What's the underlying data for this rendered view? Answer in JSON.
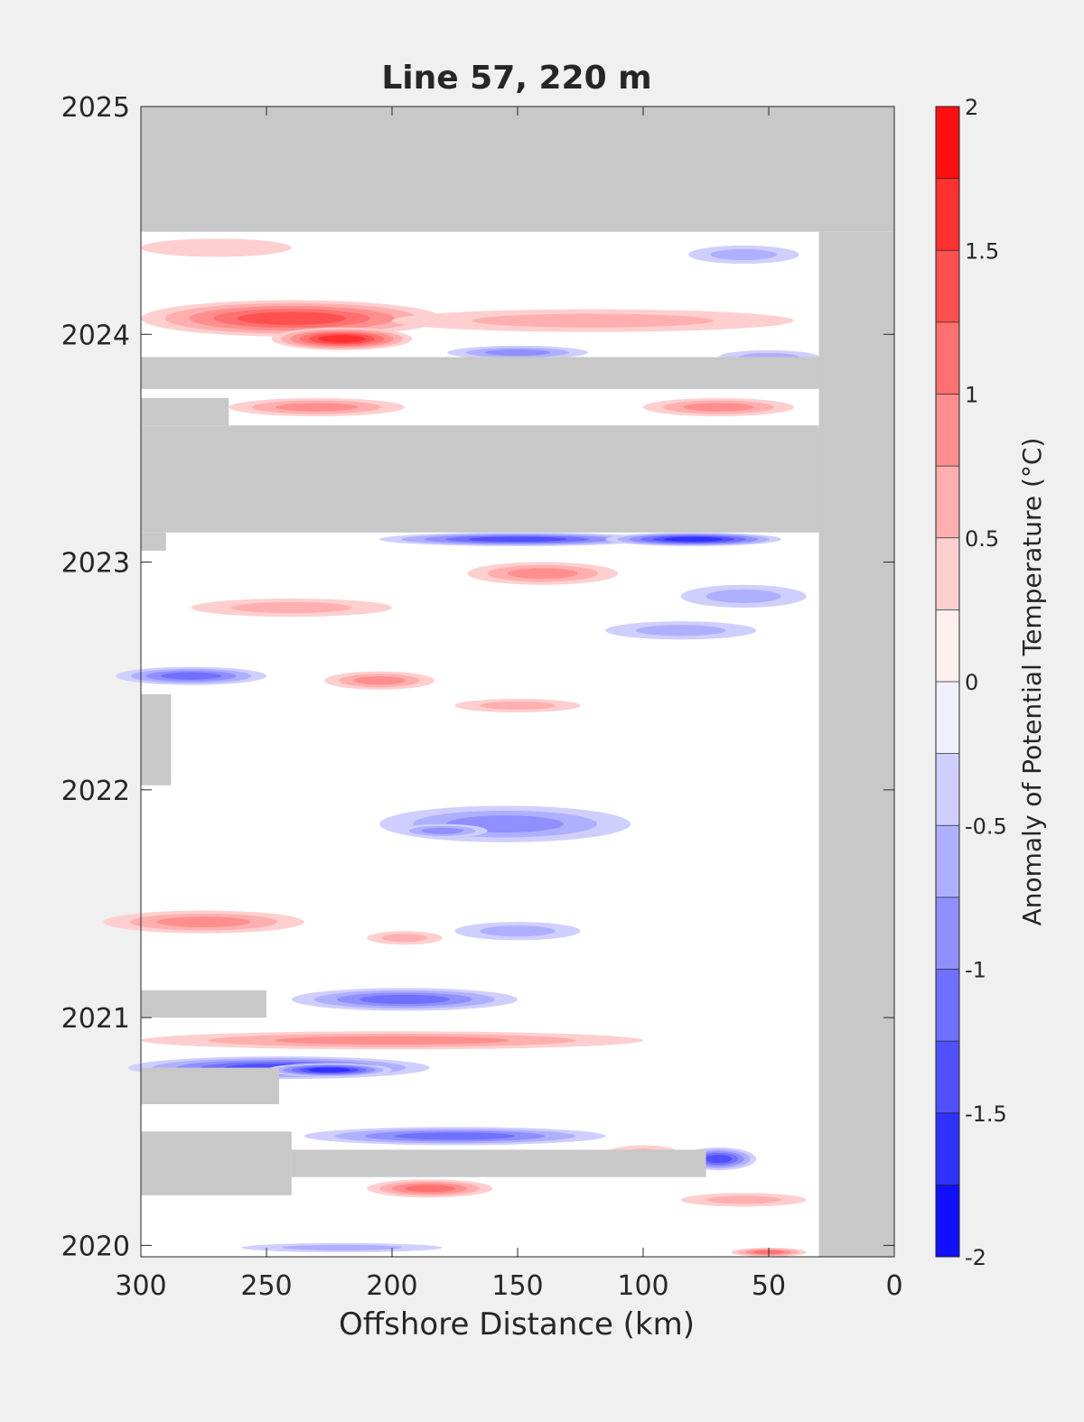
{
  "chart_data": {
    "type": "heatmap",
    "title": "Line 57, 220 m",
    "xlabel": "Offshore Distance (km)",
    "ylabel": "",
    "xlim": [
      300,
      0
    ],
    "x_reversed": true,
    "ylim": [
      2019.95,
      2025
    ],
    "xticks": [
      300,
      250,
      200,
      150,
      100,
      50,
      0
    ],
    "yticks": [
      2020,
      2021,
      2022,
      2023,
      2024,
      2025
    ],
    "colorbar": {
      "label": "Anomaly of Potential Temperature (°C)",
      "min": -2,
      "max": 2,
      "step": 0.25,
      "ticks": [
        -2,
        -1.5,
        -1,
        -0.5,
        0,
        0.5,
        1,
        1.5,
        2
      ],
      "low_color": "#0000ff",
      "mid_color": "#ffffff",
      "high_color": "#ff0000"
    },
    "nodata_color": "#c8c8c8",
    "background_color": "#ffffff",
    "nodata_regions": [
      {
        "x": [
          300,
          0
        ],
        "y": [
          2024.45,
          2025
        ]
      },
      {
        "x": [
          30,
          0
        ],
        "y": [
          2019.95,
          2024.45
        ]
      },
      {
        "x": [
          300,
          30
        ],
        "y": [
          2023.13,
          2023.6
        ]
      },
      {
        "x": [
          300,
          265
        ],
        "y": [
          2023.6,
          2023.72
        ]
      },
      {
        "x": [
          300,
          30
        ],
        "y": [
          2023.76,
          2023.9
        ]
      },
      {
        "x": [
          300,
          290
        ],
        "y": [
          2023.05,
          2023.13
        ]
      },
      {
        "x": [
          300,
          288
        ],
        "y": [
          2022.02,
          2022.42
        ]
      },
      {
        "x": [
          300,
          250
        ],
        "y": [
          2021.0,
          2021.12
        ]
      },
      {
        "x": [
          300,
          245
        ],
        "y": [
          2020.62,
          2020.78
        ]
      },
      {
        "x": [
          300,
          240
        ],
        "y": [
          2020.22,
          2020.5
        ]
      },
      {
        "x": [
          240,
          75
        ],
        "y": [
          2020.3,
          2020.42
        ]
      }
    ],
    "anomaly_features": [
      {
        "x": 240,
        "y": 2024.07,
        "value": 1.25,
        "sx": 60,
        "sy": 0.08
      },
      {
        "x": 220,
        "y": 2023.98,
        "value": 1.5,
        "sx": 28,
        "sy": 0.05
      },
      {
        "x": 120,
        "y": 2024.06,
        "value": 0.55,
        "sx": 80,
        "sy": 0.05
      },
      {
        "x": 270,
        "y": 2024.38,
        "value": 0.3,
        "sx": 30,
        "sy": 0.04
      },
      {
        "x": 60,
        "y": 2024.35,
        "value": -0.5,
        "sx": 22,
        "sy": 0.04
      },
      {
        "x": 150,
        "y": 2023.92,
        "value": -0.75,
        "sx": 28,
        "sy": 0.03
      },
      {
        "x": 50,
        "y": 2023.9,
        "value": -0.6,
        "sx": 20,
        "sy": 0.03
      },
      {
        "x": 230,
        "y": 2023.68,
        "value": 0.8,
        "sx": 35,
        "sy": 0.04
      },
      {
        "x": 70,
        "y": 2023.68,
        "value": 0.8,
        "sx": 30,
        "sy": 0.04
      },
      {
        "x": 150,
        "y": 2023.1,
        "value": -1.25,
        "sx": 55,
        "sy": 0.03
      },
      {
        "x": 80,
        "y": 2023.1,
        "value": -1.5,
        "sx": 35,
        "sy": 0.03
      },
      {
        "x": 140,
        "y": 2022.95,
        "value": 0.75,
        "sx": 30,
        "sy": 0.05
      },
      {
        "x": 240,
        "y": 2022.8,
        "value": 0.7,
        "sx": 40,
        "sy": 0.04
      },
      {
        "x": 60,
        "y": 2022.85,
        "value": -0.5,
        "sx": 25,
        "sy": 0.05
      },
      {
        "x": 85,
        "y": 2022.7,
        "value": -0.5,
        "sx": 30,
        "sy": 0.04
      },
      {
        "x": 280,
        "y": 2022.5,
        "value": -1.0,
        "sx": 30,
        "sy": 0.04
      },
      {
        "x": 205,
        "y": 2022.48,
        "value": 0.8,
        "sx": 22,
        "sy": 0.04
      },
      {
        "x": 150,
        "y": 2022.37,
        "value": 0.6,
        "sx": 25,
        "sy": 0.03
      },
      {
        "x": 155,
        "y": 2021.85,
        "value": -0.75,
        "sx": 50,
        "sy": 0.08
      },
      {
        "x": 180,
        "y": 2021.82,
        "value": -0.9,
        "sx": 18,
        "sy": 0.03
      },
      {
        "x": 275,
        "y": 2021.42,
        "value": 0.75,
        "sx": 40,
        "sy": 0.05
      },
      {
        "x": 195,
        "y": 2021.35,
        "value": 0.55,
        "sx": 15,
        "sy": 0.03
      },
      {
        "x": 150,
        "y": 2021.38,
        "value": -0.55,
        "sx": 25,
        "sy": 0.04
      },
      {
        "x": 195,
        "y": 2021.08,
        "value": -1.0,
        "sx": 45,
        "sy": 0.05
      },
      {
        "x": 200,
        "y": 2020.9,
        "value": 0.75,
        "sx": 100,
        "sy": 0.04
      },
      {
        "x": 245,
        "y": 2020.78,
        "value": -1.25,
        "sx": 60,
        "sy": 0.05
      },
      {
        "x": 225,
        "y": 2020.77,
        "value": -1.5,
        "sx": 25,
        "sy": 0.03
      },
      {
        "x": 175,
        "y": 2020.48,
        "value": -1.0,
        "sx": 60,
        "sy": 0.04
      },
      {
        "x": 70,
        "y": 2020.38,
        "value": -1.25,
        "sx": 15,
        "sy": 0.05
      },
      {
        "x": 185,
        "y": 2020.25,
        "value": 1.0,
        "sx": 25,
        "sy": 0.04
      },
      {
        "x": 60,
        "y": 2020.2,
        "value": 0.5,
        "sx": 25,
        "sy": 0.03
      },
      {
        "x": 100,
        "y": 2020.4,
        "value": 0.5,
        "sx": 15,
        "sy": 0.04
      },
      {
        "x": 50,
        "y": 2019.97,
        "value": 1.0,
        "sx": 15,
        "sy": 0.02
      },
      {
        "x": 220,
        "y": 2019.99,
        "value": -0.5,
        "sx": 40,
        "sy": 0.02
      }
    ]
  }
}
